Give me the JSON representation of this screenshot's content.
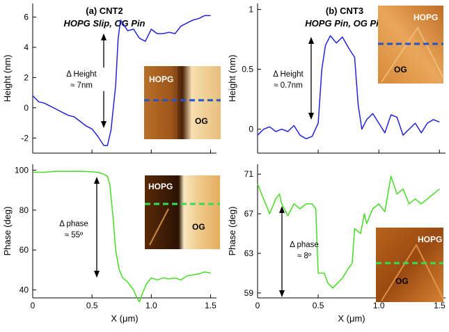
{
  "panels": [
    {
      "title": "(a) CNT2",
      "subtitle": "HOPG Slip, OG Pin",
      "height_inset_labels": [
        "HOPG",
        "OG"
      ],
      "phase_inset_labels": [
        "HOPG",
        "OG"
      ]
    },
    {
      "title": "(b) CNT3",
      "subtitle": "HOPG Pin, OG Pin",
      "height_inset_labels": [
        "HOPG",
        "OG"
      ],
      "phase_inset_labels": [
        "HOPG",
        "OG"
      ]
    }
  ],
  "annotations": {
    "a_height": [
      "Δ Height",
      "≈ 7nm"
    ],
    "a_phase": [
      "Δ phase",
      "≈ 55º"
    ],
    "b_height": [
      "Δ Height",
      "≈ 0.7nm"
    ],
    "b_phase": [
      "Δ phase",
      "≈ 8º"
    ]
  },
  "colors": {
    "height_line": "#2222dd",
    "phase_line": "#44dd22",
    "height_inset_dash": "#2255cc",
    "phase_inset_dash": "#33dd55"
  },
  "chart_data": [
    {
      "id": "a_height",
      "type": "line",
      "xlabel": "",
      "ylabel": "Height (nm)",
      "xlim": [
        0,
        1.55
      ],
      "ylim": [
        -3.0,
        6.9
      ],
      "yticks": [
        -2,
        0,
        2,
        4,
        6
      ],
      "xticks": [
        0,
        0.5,
        1.0,
        1.5
      ],
      "show_xtick_labels": false,
      "x": [
        0,
        0.05,
        0.1,
        0.15,
        0.2,
        0.25,
        0.3,
        0.35,
        0.4,
        0.45,
        0.5,
        0.55,
        0.6,
        0.63,
        0.66,
        0.7,
        0.72,
        0.74,
        0.76,
        0.8,
        0.85,
        0.9,
        0.95,
        1.0,
        1.05,
        1.1,
        1.15,
        1.2,
        1.25,
        1.3,
        1.35,
        1.4,
        1.45,
        1.5
      ],
      "y": [
        0.8,
        0.4,
        0.3,
        0.1,
        -0.1,
        -0.3,
        -0.5,
        -0.6,
        -0.9,
        -1.2,
        -1.4,
        -1.9,
        -2.5,
        -2.5,
        -1.5,
        1.5,
        4.5,
        5.8,
        5.6,
        5.1,
        5.2,
        4.6,
        4.4,
        5.2,
        4.9,
        4.9,
        5.0,
        4.9,
        5.4,
        5.6,
        5.8,
        5.9,
        6.1,
        6.1
      ]
    },
    {
      "id": "a_phase",
      "type": "line",
      "xlabel": "X (μm)",
      "ylabel": "Phase (deg)",
      "xlim": [
        0,
        1.55
      ],
      "ylim": [
        36,
        103
      ],
      "yticks": [
        40,
        60,
        80,
        100
      ],
      "xticks": [
        0,
        0.5,
        1.0,
        1.5
      ],
      "xticklabels": [
        "0",
        "0.5",
        "1.0",
        "1.5"
      ],
      "x": [
        0,
        0.1,
        0.2,
        0.3,
        0.4,
        0.5,
        0.55,
        0.6,
        0.63,
        0.65,
        0.68,
        0.7,
        0.73,
        0.76,
        0.8,
        0.85,
        0.88,
        0.9,
        0.93,
        0.96,
        1.0,
        1.05,
        1.1,
        1.15,
        1.2,
        1.25,
        1.3,
        1.35,
        1.4,
        1.45,
        1.5
      ],
      "y": [
        99,
        99,
        99.5,
        99.4,
        99.5,
        99.2,
        99,
        98,
        97,
        93,
        75,
        60,
        50,
        46,
        44,
        40,
        36,
        34,
        39,
        43,
        46,
        45,
        46,
        45.5,
        46,
        45,
        47,
        47.5,
        48,
        49,
        48.5
      ]
    },
    {
      "id": "b_height",
      "type": "line",
      "xlabel": "",
      "ylabel": "Height (nm)",
      "xlim": [
        0,
        1.55
      ],
      "ylim": [
        -0.2,
        1.05
      ],
      "yticks": [
        0,
        0.5,
        1.0
      ],
      "xticks": [
        0,
        0.5,
        1.0,
        1.5
      ],
      "show_xtick_labels": false,
      "x": [
        0,
        0.05,
        0.1,
        0.15,
        0.2,
        0.25,
        0.3,
        0.35,
        0.4,
        0.45,
        0.5,
        0.53,
        0.56,
        0.6,
        0.65,
        0.7,
        0.75,
        0.8,
        0.83,
        0.86,
        0.9,
        0.95,
        1.0,
        1.05,
        1.1,
        1.15,
        1.2,
        1.25,
        1.3,
        1.35,
        1.4,
        1.45,
        1.5
      ],
      "y": [
        -0.05,
        0.0,
        0.02,
        -0.02,
        0.0,
        -0.02,
        0.03,
        -0.05,
        -0.08,
        -0.06,
        0.05,
        0.5,
        0.7,
        0.78,
        0.72,
        0.77,
        0.68,
        0.6,
        0.2,
        0.0,
        0.08,
        0.13,
        0.05,
        -0.03,
        0.12,
        0.1,
        -0.05,
        0.0,
        0.05,
        -0.03,
        0.05,
        0.08,
        0.06
      ]
    },
    {
      "id": "b_phase",
      "type": "line",
      "xlabel": "X (μm)",
      "ylabel": "Phase (deg)",
      "xlim": [
        0,
        1.55
      ],
      "ylim": [
        58.5,
        72
      ],
      "yticks": [
        59,
        63,
        67,
        71
      ],
      "xticks": [
        0,
        0.5,
        1.0,
        1.5
      ],
      "xticklabels": [
        "0",
        "0.5",
        "1.0",
        "1.5"
      ],
      "x": [
        0,
        0.05,
        0.1,
        0.15,
        0.18,
        0.2,
        0.25,
        0.3,
        0.35,
        0.4,
        0.45,
        0.48,
        0.5,
        0.55,
        0.58,
        0.62,
        0.66,
        0.7,
        0.75,
        0.78,
        0.8,
        0.85,
        0.88,
        0.9,
        0.95,
        1.0,
        1.05,
        1.1,
        1.15,
        1.2,
        1.25,
        1.3,
        1.35,
        1.4,
        1.45,
        1.5
      ],
      "y": [
        70,
        68.5,
        67,
        68.5,
        69,
        68,
        66.8,
        68,
        67.5,
        68,
        68,
        67.5,
        61,
        61,
        60,
        59.5,
        60,
        60.5,
        61.5,
        62,
        65.5,
        65,
        67,
        66,
        67.5,
        68,
        67.2,
        70.8,
        69,
        69.5,
        68,
        68.5,
        68,
        68.5,
        69,
        69.5
      ]
    }
  ]
}
